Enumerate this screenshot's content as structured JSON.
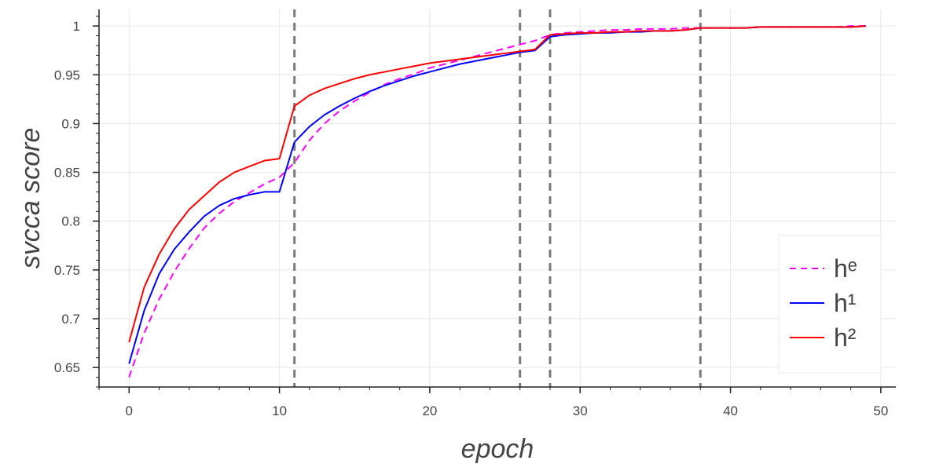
{
  "chart_data": {
    "type": "line",
    "xlabel": "epoch",
    "ylabel": "svcca score",
    "xlim": [
      -2,
      51
    ],
    "ylim": [
      0.63,
      1.017
    ],
    "x_ticks": [
      0,
      10,
      20,
      30,
      40,
      50
    ],
    "x_tick_labels": [
      "0",
      "10",
      "20",
      "30",
      "40",
      "50"
    ],
    "y_ticks": [
      0.65,
      0.7,
      0.75,
      0.8,
      0.85,
      0.9,
      0.95,
      1
    ],
    "y_tick_labels": [
      "0.65",
      "0.7",
      "0.75",
      "0.8",
      "0.85",
      "0.9",
      "0.95",
      "1"
    ],
    "grid": true,
    "legend_position": "bottom-right",
    "vertical_lines": [
      11,
      26,
      28,
      38
    ],
    "vertical_line_color": "#7a7a7a",
    "series": [
      {
        "name": "hᵉ",
        "color": "#ff00ff",
        "dash": true,
        "x": [
          0,
          1,
          2,
          3,
          4,
          5,
          6,
          7,
          8,
          9,
          10,
          11,
          12,
          13,
          14,
          15,
          16,
          17,
          18,
          19,
          20,
          21,
          22,
          23,
          24,
          25,
          26,
          27,
          28,
          29,
          30,
          31,
          32,
          33,
          34,
          35,
          36,
          37,
          38,
          39,
          40,
          41,
          42,
          43,
          44,
          45,
          46,
          47,
          48,
          49
        ],
        "y": [
          0.64,
          0.685,
          0.72,
          0.748,
          0.772,
          0.793,
          0.808,
          0.82,
          0.829,
          0.838,
          0.845,
          0.86,
          0.883,
          0.9,
          0.913,
          0.923,
          0.932,
          0.94,
          0.946,
          0.951,
          0.957,
          0.961,
          0.965,
          0.969,
          0.973,
          0.977,
          0.981,
          0.985,
          0.991,
          0.993,
          0.994,
          0.995,
          0.996,
          0.996,
          0.997,
          0.997,
          0.997,
          0.998,
          0.998,
          0.998,
          0.998,
          0.998,
          0.999,
          0.999,
          0.999,
          0.999,
          0.999,
          0.999,
          1.0,
          1.0
        ]
      },
      {
        "name": "h¹",
        "color": "#0000ff",
        "dash": false,
        "x": [
          0,
          1,
          2,
          3,
          4,
          5,
          6,
          7,
          8,
          9,
          10,
          11,
          12,
          13,
          14,
          15,
          16,
          17,
          18,
          19,
          20,
          21,
          22,
          23,
          24,
          25,
          26,
          27,
          28,
          29,
          30,
          31,
          32,
          33,
          34,
          35,
          36,
          37,
          38,
          39,
          40,
          41,
          42,
          43,
          44,
          45,
          46,
          47,
          48,
          49
        ],
        "y": [
          0.654,
          0.708,
          0.746,
          0.771,
          0.789,
          0.805,
          0.816,
          0.823,
          0.827,
          0.83,
          0.83,
          0.881,
          0.897,
          0.909,
          0.918,
          0.926,
          0.933,
          0.939,
          0.944,
          0.949,
          0.953,
          0.957,
          0.961,
          0.964,
          0.967,
          0.97,
          0.973,
          0.975,
          0.989,
          0.991,
          0.992,
          0.993,
          0.993,
          0.994,
          0.994,
          0.995,
          0.995,
          0.996,
          0.998,
          0.998,
          0.998,
          0.998,
          0.999,
          0.999,
          0.999,
          0.999,
          0.999,
          0.999,
          0.999,
          1.0
        ]
      },
      {
        "name": "h²",
        "color": "#ff0000",
        "dash": false,
        "x": [
          0,
          1,
          2,
          3,
          4,
          5,
          6,
          7,
          8,
          9,
          10,
          11,
          12,
          13,
          14,
          15,
          16,
          17,
          18,
          19,
          20,
          21,
          22,
          23,
          24,
          25,
          26,
          27,
          28,
          29,
          30,
          31,
          32,
          33,
          34,
          35,
          36,
          37,
          38,
          39,
          40,
          41,
          42,
          43,
          44,
          45,
          46,
          47,
          48,
          49
        ],
        "y": [
          0.676,
          0.732,
          0.766,
          0.792,
          0.812,
          0.826,
          0.84,
          0.85,
          0.856,
          0.862,
          0.864,
          0.918,
          0.929,
          0.936,
          0.941,
          0.946,
          0.95,
          0.953,
          0.956,
          0.959,
          0.962,
          0.964,
          0.966,
          0.968,
          0.97,
          0.972,
          0.974,
          0.976,
          0.991,
          0.992,
          0.993,
          0.993,
          0.994,
          0.994,
          0.995,
          0.995,
          0.995,
          0.996,
          0.998,
          0.998,
          0.998,
          0.998,
          0.999,
          0.999,
          0.999,
          0.999,
          0.999,
          0.999,
          0.999,
          1.0
        ]
      }
    ]
  }
}
